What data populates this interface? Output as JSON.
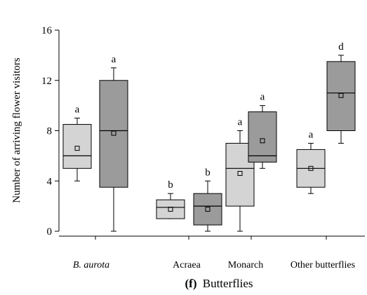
{
  "chart_data": {
    "type": "box",
    "ylabel": "Number of arriving flower visitors",
    "ylim": [
      0,
      16
    ],
    "yticks": [
      0,
      4,
      8,
      12,
      16
    ],
    "caption": {
      "letter": "(f)",
      "text": "Butterflies"
    },
    "groups": [
      {
        "label": "B. aurota",
        "italic": true
      },
      {
        "label": "Acraea",
        "italic": false
      },
      {
        "label": "Monarch",
        "italic": false
      },
      {
        "label": "Other butterflies",
        "italic": false
      }
    ],
    "boxes": [
      {
        "group": 0,
        "shade": "light",
        "min": 4,
        "q1": 5,
        "median": 6,
        "q3": 8.5,
        "max": 9,
        "mean": 6.6,
        "letter": "a"
      },
      {
        "group": 0,
        "shade": "dark",
        "min": 0,
        "q1": 3.5,
        "median": 8,
        "q3": 12,
        "max": 13,
        "mean": 7.8,
        "letter": "a"
      },
      {
        "group": 1,
        "shade": "light",
        "min": 1,
        "q1": 1,
        "median": 1.9,
        "q3": 2.5,
        "max": 3,
        "mean": 1.75,
        "letter": "b"
      },
      {
        "group": 1,
        "shade": "dark",
        "min": 0,
        "q1": 0.5,
        "median": 2,
        "q3": 3,
        "max": 4,
        "mean": 1.75,
        "letter": "b"
      },
      {
        "group": 2,
        "shade": "light",
        "min": 0,
        "q1": 2,
        "median": 5,
        "q3": 7,
        "max": 8,
        "mean": 4.6,
        "letter": "a"
      },
      {
        "group": 2,
        "shade": "dark",
        "min": 5,
        "q1": 5.5,
        "median": 6,
        "q3": 9.5,
        "max": 10,
        "mean": 7.2,
        "letter": "a"
      },
      {
        "group": 3,
        "shade": "light",
        "min": 3,
        "q1": 3.5,
        "median": 5,
        "q3": 6.5,
        "max": 7,
        "mean": 5.0,
        "letter": "a"
      },
      {
        "group": 3,
        "shade": "dark",
        "min": 7,
        "q1": 8,
        "median": 11,
        "q3": 13.5,
        "max": 14,
        "mean": 10.8,
        "letter": "d"
      }
    ],
    "colors": {
      "light": "#d4d4d4",
      "dark": "#9b9b9b",
      "stroke": "#000000"
    },
    "grid": false
  }
}
